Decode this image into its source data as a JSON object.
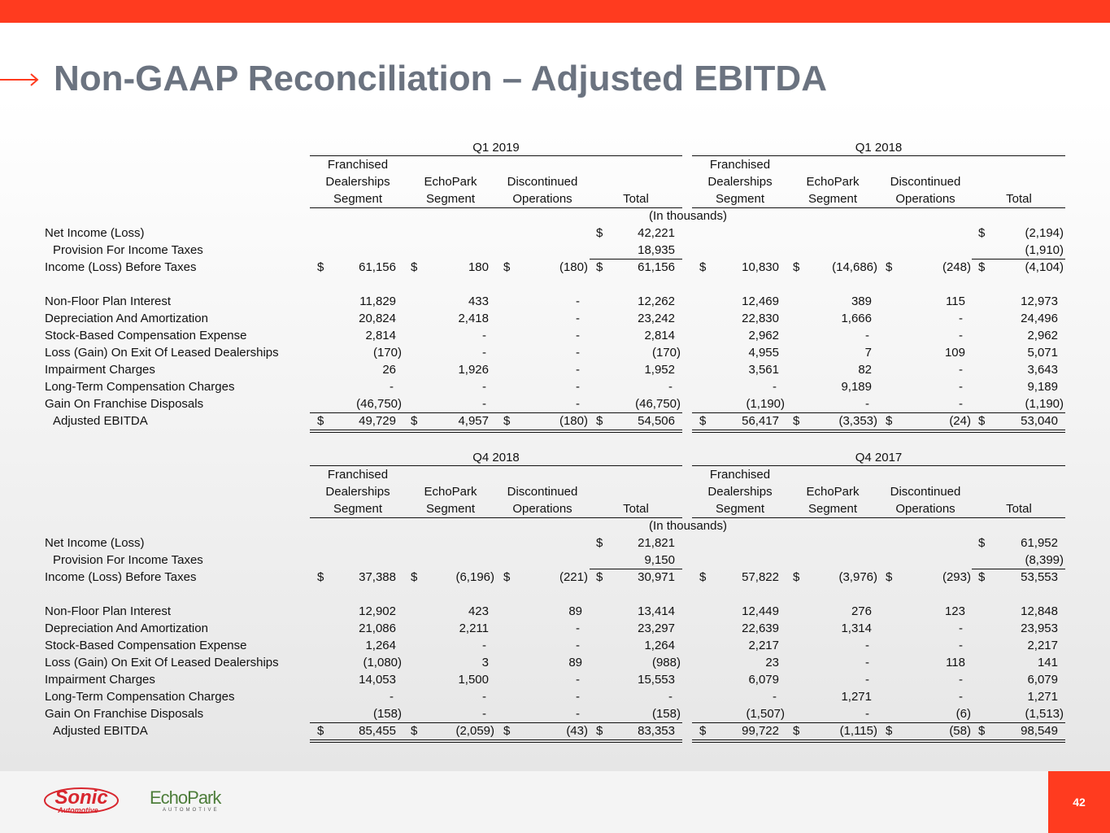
{
  "header": {
    "title": "Non-GAAP Reconciliation – Adjusted EBITDA"
  },
  "blocks": [
    {
      "periods": [
        {
          "label": "Q1 2019",
          "columns": [
            [
              "Franchised",
              "Dealerships",
              "Segment"
            ],
            [
              "EchoPark",
              "Segment"
            ],
            [
              "Discontinued",
              "Operations"
            ],
            [
              "Total"
            ]
          ]
        },
        {
          "label": "Q1 2018",
          "columns": [
            [
              "Franchised",
              "Dealerships",
              "Segment"
            ],
            [
              "EchoPark",
              "Segment"
            ],
            [
              "Discontinued",
              "Operations"
            ],
            [
              "Total"
            ]
          ]
        }
      ],
      "unit_note": "(In thousands)",
      "rows": [
        {
          "label": "Net Income (Loss)",
          "cells": [
            null,
            null,
            null,
            {
              "symbol": "$",
              "value": "42,221"
            },
            null,
            null,
            null,
            {
              "symbol": "$",
              "value": "(2,194)"
            }
          ]
        },
        {
          "label": "Provision For Income Taxes",
          "cells": [
            null,
            null,
            null,
            "18,935",
            null,
            null,
            null,
            "(1,910)"
          ]
        },
        {
          "label": "Income (Loss) Before Taxes",
          "cells": [
            {
              "symbol": "$",
              "value": "61,156"
            },
            {
              "symbol": "$",
              "value": "180"
            },
            {
              "symbol": "$",
              "value": "(180)"
            },
            {
              "symbol": "$",
              "value": "61,156"
            },
            {
              "symbol": "$",
              "value": "10,830"
            },
            {
              "symbol": "$",
              "value": "(14,686)"
            },
            {
              "symbol": "$",
              "value": "(248)"
            },
            {
              "symbol": "$",
              "value": "(4,104)"
            }
          ]
        },
        {
          "label": "Non-Floor Plan Interest",
          "cells": [
            "11,829",
            "433",
            "-",
            "12,262",
            "12,469",
            "389",
            "115",
            "12,973"
          ]
        },
        {
          "label": "Depreciation And Amortization",
          "cells": [
            "20,824",
            "2,418",
            "-",
            "23,242",
            "22,830",
            "1,666",
            "-",
            "24,496"
          ]
        },
        {
          "label": "Stock-Based Compensation Expense",
          "cells": [
            "2,814",
            "-",
            "-",
            "2,814",
            "2,962",
            "-",
            "-",
            "2,962"
          ]
        },
        {
          "label": "Loss (Gain) On Exit Of Leased Dealerships",
          "cells": [
            "(170)",
            "-",
            "-",
            "(170)",
            "4,955",
            "7",
            "109",
            "5,071"
          ]
        },
        {
          "label": "Impairment Charges",
          "cells": [
            "26",
            "1,926",
            "-",
            "1,952",
            "3,561",
            "82",
            "-",
            "3,643"
          ]
        },
        {
          "label": "Long-Term Compensation Charges",
          "cells": [
            "-",
            "-",
            "-",
            "-",
            "-",
            "9,189",
            "-",
            "9,189"
          ]
        },
        {
          "label": "Gain On Franchise Disposals",
          "cells": [
            "(46,750)",
            "-",
            "-",
            "(46,750)",
            "(1,190)",
            "-",
            "-",
            "(1,190)"
          ]
        },
        {
          "label": "Adjusted EBITDA",
          "cells": [
            {
              "symbol": "$",
              "value": "49,729"
            },
            {
              "symbol": "$",
              "value": "4,957"
            },
            {
              "symbol": "$",
              "value": "(180)"
            },
            {
              "symbol": "$",
              "value": "54,506"
            },
            {
              "symbol": "$",
              "value": "56,417"
            },
            {
              "symbol": "$",
              "value": "(3,353)"
            },
            {
              "symbol": "$",
              "value": "(24)"
            },
            {
              "symbol": "$",
              "value": "53,040"
            }
          ]
        }
      ]
    },
    {
      "periods": [
        {
          "label": "Q4 2018",
          "columns": [
            [
              "Franchised",
              "Dealerships",
              "Segment"
            ],
            [
              "EchoPark",
              "Segment"
            ],
            [
              "Discontinued",
              "Operations"
            ],
            [
              "Total"
            ]
          ]
        },
        {
          "label": "Q4 2017",
          "columns": [
            [
              "Franchised",
              "Dealerships",
              "Segment"
            ],
            [
              "EchoPark",
              "Segment"
            ],
            [
              "Discontinued",
              "Operations"
            ],
            [
              "Total"
            ]
          ]
        }
      ],
      "unit_note": "(In thousands)",
      "rows": [
        {
          "label": "Net Income (Loss)",
          "cells": [
            null,
            null,
            null,
            {
              "symbol": "$",
              "value": "21,821"
            },
            null,
            null,
            null,
            {
              "symbol": "$",
              "value": "61,952"
            }
          ]
        },
        {
          "label": "Provision For Income Taxes",
          "cells": [
            null,
            null,
            null,
            "9,150",
            null,
            null,
            null,
            "(8,399)"
          ]
        },
        {
          "label": "Income (Loss) Before Taxes",
          "cells": [
            {
              "symbol": "$",
              "value": "37,388"
            },
            {
              "symbol": "$",
              "value": "(6,196)"
            },
            {
              "symbol": "$",
              "value": "(221)"
            },
            {
              "symbol": "$",
              "value": "30,971"
            },
            {
              "symbol": "$",
              "value": "57,822"
            },
            {
              "symbol": "$",
              "value": "(3,976)"
            },
            {
              "symbol": "$",
              "value": "(293)"
            },
            {
              "symbol": "$",
              "value": "53,553"
            }
          ]
        },
        {
          "label": "Non-Floor Plan Interest",
          "cells": [
            "12,902",
            "423",
            "89",
            "13,414",
            "12,449",
            "276",
            "123",
            "12,848"
          ]
        },
        {
          "label": "Depreciation And Amortization",
          "cells": [
            "21,086",
            "2,211",
            "-",
            "23,297",
            "22,639",
            "1,314",
            "-",
            "23,953"
          ]
        },
        {
          "label": "Stock-Based Compensation Expense",
          "cells": [
            "1,264",
            "-",
            "-",
            "1,264",
            "2,217",
            "-",
            "-",
            "2,217"
          ]
        },
        {
          "label": "Loss (Gain) On Exit Of Leased Dealerships",
          "cells": [
            "(1,080)",
            "3",
            "89",
            "(988)",
            "23",
            "-",
            "118",
            "141"
          ]
        },
        {
          "label": "Impairment Charges",
          "cells": [
            "14,053",
            "1,500",
            "-",
            "15,553",
            "6,079",
            "-",
            "-",
            "6,079"
          ]
        },
        {
          "label": "Long-Term Compensation Charges",
          "cells": [
            "-",
            "-",
            "-",
            "-",
            "-",
            "1,271",
            "-",
            "1,271"
          ]
        },
        {
          "label": "Gain On Franchise Disposals",
          "cells": [
            "(158)",
            "-",
            "-",
            "(158)",
            "(1,507)",
            "-",
            "(6)",
            "(1,513)"
          ]
        },
        {
          "label": "Adjusted EBITDA",
          "cells": [
            {
              "symbol": "$",
              "value": "85,455"
            },
            {
              "symbol": "$",
              "value": "(2,059)"
            },
            {
              "symbol": "$",
              "value": "(43)"
            },
            {
              "symbol": "$",
              "value": "83,353"
            },
            {
              "symbol": "$",
              "value": "99,722"
            },
            {
              "symbol": "$",
              "value": "(1,115)"
            },
            {
              "symbol": "$",
              "value": "(58)"
            },
            {
              "symbol": "$",
              "value": "98,549"
            }
          ]
        }
      ]
    }
  ],
  "footer": {
    "logos": [
      {
        "name": "Sonic",
        "sub": "Automotive"
      },
      {
        "name": "EchoPark",
        "sub": "AUTOMOTIVE"
      }
    ],
    "page_number": "42"
  }
}
